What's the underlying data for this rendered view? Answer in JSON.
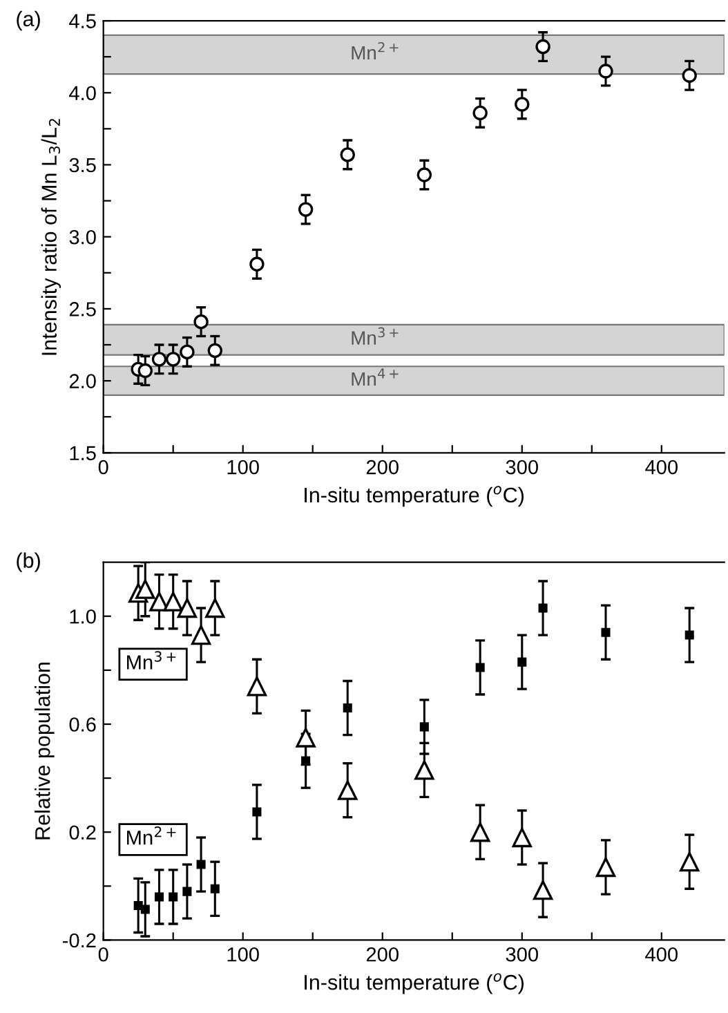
{
  "chart_data": [
    {
      "type": "scatter",
      "title": "(a)",
      "xlabel": "In-situ temperature ($^{o}$C)",
      "ylabel": "Intensity ratio of Mn L$_{3}$/L$_{2}$",
      "x": [
        25,
        30,
        40,
        50,
        60,
        70,
        80,
        110,
        145,
        175,
        230,
        270,
        300,
        315,
        360,
        420
      ],
      "series": [
        {
          "color": "#000000",
          "marker": "circle",
          "values": [
            2.08,
            2.07,
            2.15,
            2.15,
            2.2,
            2.41,
            2.21,
            2.81,
            3.19,
            3.57,
            3.43,
            3.86,
            3.92,
            4.32,
            4.15,
            4.12
          ],
          "errors": [
            0.1,
            0.1,
            0.1,
            0.1,
            0.1,
            0.1,
            0.1,
            0.1,
            0.1,
            0.1,
            0.1,
            0.1,
            0.1,
            0.1,
            0.1,
            0.1
          ]
        }
      ],
      "bands": [
        {
          "axis": "y",
          "from": 4.13,
          "to": 4.4,
          "label": "Mn$^{2+}$",
          "color": "#d4d4d4"
        },
        {
          "axis": "y",
          "from": 2.18,
          "to": 2.39,
          "label": "Mn$^{3+}$",
          "color": "#d4d4d4"
        },
        {
          "axis": "y",
          "from": 1.9,
          "to": 2.1,
          "label": "Mn$^{4+}$",
          "color": "#d4d4d4"
        }
      ],
      "xlim": [
        0,
        445
      ],
      "ylim": [
        1.5,
        4.5
      ],
      "xticks": [
        0,
        {
          "value": 50,
          "label": null
        },
        100,
        {
          "value": 150,
          "label": null
        },
        200,
        {
          "value": 250,
          "label": null
        },
        300,
        {
          "value": 350,
          "label": null
        },
        400
      ],
      "yticks": [
        {
          "value": 1.5,
          "label": "1.5"
        },
        {
          "value": 1.75,
          "label": null
        },
        {
          "value": 2.0,
          "label": "2.0"
        },
        {
          "value": 2.25,
          "label": null
        },
        {
          "value": 2.5,
          "label": "2.5"
        },
        {
          "value": 2.75,
          "label": null
        },
        {
          "value": 3.0,
          "label": "3.0"
        },
        {
          "value": 3.25,
          "label": null
        },
        {
          "value": 3.5,
          "label": "3.5"
        },
        {
          "value": 3.75,
          "label": null
        },
        {
          "value": 4.0,
          "label": "4.0"
        },
        {
          "value": 4.25,
          "label": null
        },
        {
          "value": 4.5,
          "label": "4.5"
        }
      ],
      "grid": false
    },
    {
      "type": "scatter",
      "title": "(b)",
      "xlabel": "In-situ temperature ($^{o}$C)",
      "ylabel": "Relative population",
      "x": [
        25,
        30,
        40,
        50,
        60,
        70,
        80,
        110,
        145,
        175,
        230,
        270,
        300,
        315,
        360,
        420
      ],
      "series": [
        {
          "name": "Mn$^{3+}$",
          "color": "#000000",
          "marker": "triangle",
          "values": [
            1.086,
            1.1,
            1.054,
            1.054,
            1.03,
            0.93,
            1.03,
            0.74,
            0.55,
            0.355,
            0.43,
            0.2,
            0.18,
            -0.015,
            0.07,
            0.09
          ],
          "errors": [
            0.1,
            0.1,
            0.1,
            0.1,
            0.1,
            0.1,
            0.1,
            0.1,
            0.1,
            0.1,
            0.1,
            0.1,
            0.1,
            0.1,
            0.1,
            0.1
          ]
        },
        {
          "name": "Mn$^{2+}$",
          "color": "#000000",
          "marker": "square",
          "values": [
            -0.072,
            -0.086,
            -0.04,
            -0.04,
            -0.02,
            0.08,
            -0.01,
            0.275,
            0.464,
            0.66,
            0.59,
            0.81,
            0.83,
            1.03,
            0.94,
            0.93
          ],
          "errors": [
            0.1,
            0.1,
            0.1,
            0.1,
            0.1,
            0.1,
            0.1,
            0.1,
            0.1,
            0.1,
            0.1,
            0.1,
            0.1,
            0.1,
            0.1,
            0.1
          ]
        }
      ],
      "xlim": [
        0,
        445
      ],
      "ylim": [
        -0.2,
        1.2
      ],
      "xticks": [
        0,
        {
          "value": 50,
          "label": null
        },
        100,
        {
          "value": 150,
          "label": null
        },
        200,
        {
          "value": 250,
          "label": null
        },
        300,
        {
          "value": 350,
          "label": null
        },
        400
      ],
      "yticks": [
        -0.2,
        {
          "value": 0.0,
          "label": null
        },
        0.2,
        {
          "value": 0.4,
          "label": null
        },
        0.6,
        {
          "value": 0.8,
          "label": null
        },
        {
          "value": 1.0,
          "label": "1.0"
        }
      ],
      "grid": false
    }
  ]
}
